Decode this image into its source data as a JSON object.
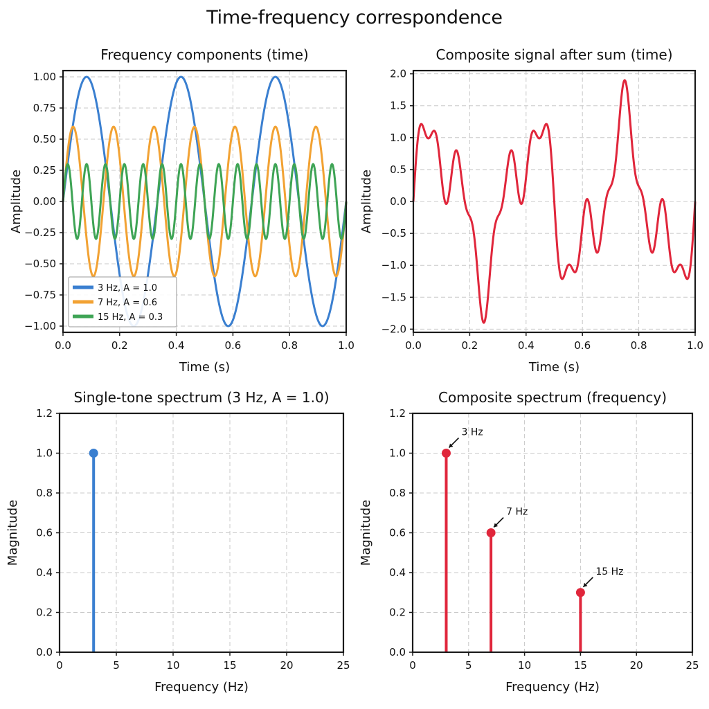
{
  "figure": {
    "title": "Time-frequency correspondence"
  },
  "colors": {
    "blue": "#3a7fd0",
    "orange": "#f2a233",
    "green": "#3ea455",
    "red": "#e0263b",
    "grid": "#c8c8c8",
    "frame": "#1a1a1a"
  },
  "chart_data": [
    {
      "type": "line",
      "title": "Frequency components (time)",
      "xlabel": "Time (s)",
      "ylabel": "Amplitude",
      "xlim": [
        0,
        1.0
      ],
      "ylim": [
        -1.05,
        1.05
      ],
      "xticks": [
        0.0,
        0.2,
        0.4,
        0.6,
        0.8,
        1.0
      ],
      "xtick_labels": [
        "0.0",
        "0.2",
        "0.4",
        "0.6",
        "0.8",
        "1.0"
      ],
      "yticks": [
        1.0,
        0.75,
        0.5,
        0.25,
        0.0,
        -0.25,
        -0.5,
        -0.75,
        -1.0
      ],
      "ytick_labels": [
        "1.00",
        "0.75",
        "0.50",
        "0.25",
        "0.00",
        "−0.25",
        "−0.50",
        "−0.75",
        "−1.00"
      ],
      "grid": true,
      "legend": "lower-left",
      "series": [
        {
          "name": "3 Hz,  A = 1.0",
          "frequency_hz": 3,
          "amplitude": 1.0,
          "color": "#3a7fd0"
        },
        {
          "name": "7 Hz,  A = 0.6",
          "frequency_hz": 7,
          "amplitude": 0.6,
          "color": "#f2a233"
        },
        {
          "name": "15 Hz,  A = 0.3",
          "frequency_hz": 15,
          "amplitude": 0.3,
          "color": "#3ea455"
        }
      ]
    },
    {
      "type": "line",
      "title": "Composite signal after sum (time)",
      "xlabel": "Time (s)",
      "ylabel": "Amplitude",
      "xlim": [
        0,
        1.0
      ],
      "ylim": [
        -2.05,
        2.05
      ],
      "xticks": [
        0.0,
        0.2,
        0.4,
        0.6,
        0.8,
        1.0
      ],
      "xtick_labels": [
        "0.0",
        "0.2",
        "0.4",
        "0.6",
        "0.8",
        "1.0"
      ],
      "yticks": [
        2.0,
        1.5,
        1.0,
        0.5,
        0.0,
        -0.5,
        -1.0,
        -1.5,
        -2.0
      ],
      "ytick_labels": [
        "2.0",
        "1.5",
        "1.0",
        "0.5",
        "0.0",
        "−0.5",
        "−1.0",
        "−1.5",
        "−2.0"
      ],
      "grid": true,
      "series": [
        {
          "components": [
            {
              "frequency_hz": 3,
              "amplitude": 1.0
            },
            {
              "frequency_hz": 7,
              "amplitude": 0.6
            },
            {
              "frequency_hz": 15,
              "amplitude": 0.3
            }
          ],
          "color": "#e0263b"
        }
      ]
    },
    {
      "type": "stem",
      "title": "Single-tone spectrum (3 Hz,  A = 1.0)",
      "xlabel": "Frequency (Hz)",
      "ylabel": "Magnitude",
      "xlim": [
        0,
        25
      ],
      "ylim": [
        0,
        1.2
      ],
      "xticks": [
        0,
        5,
        10,
        15,
        20,
        25
      ],
      "xtick_labels": [
        "0",
        "5",
        "10",
        "15",
        "20",
        "25"
      ],
      "yticks": [
        1.2,
        1.0,
        0.8,
        0.6,
        0.4,
        0.2,
        0.0
      ],
      "ytick_labels": [
        "1.2",
        "1.0",
        "0.8",
        "0.6",
        "0.4",
        "0.2",
        "0.0"
      ],
      "grid": true,
      "points": [
        {
          "x": 3,
          "y": 1.0
        }
      ],
      "color": "#3a7fd0"
    },
    {
      "type": "stem",
      "title": "Composite spectrum (frequency)",
      "xlabel": "Frequency (Hz)",
      "ylabel": "Magnitude",
      "xlim": [
        0,
        25
      ],
      "ylim": [
        0,
        1.2
      ],
      "xticks": [
        0,
        5,
        10,
        15,
        20,
        25
      ],
      "xtick_labels": [
        "0",
        "5",
        "10",
        "15",
        "20",
        "25"
      ],
      "yticks": [
        1.2,
        1.0,
        0.8,
        0.6,
        0.4,
        0.2,
        0.0
      ],
      "ytick_labels": [
        "1.2",
        "1.0",
        "0.8",
        "0.6",
        "0.4",
        "0.2",
        "0.0"
      ],
      "grid": true,
      "points": [
        {
          "x": 3,
          "y": 1.0,
          "label": "3 Hz"
        },
        {
          "x": 7,
          "y": 0.6,
          "label": "7 Hz"
        },
        {
          "x": 15,
          "y": 0.3,
          "label": "15 Hz"
        }
      ],
      "color": "#e0263b"
    }
  ]
}
